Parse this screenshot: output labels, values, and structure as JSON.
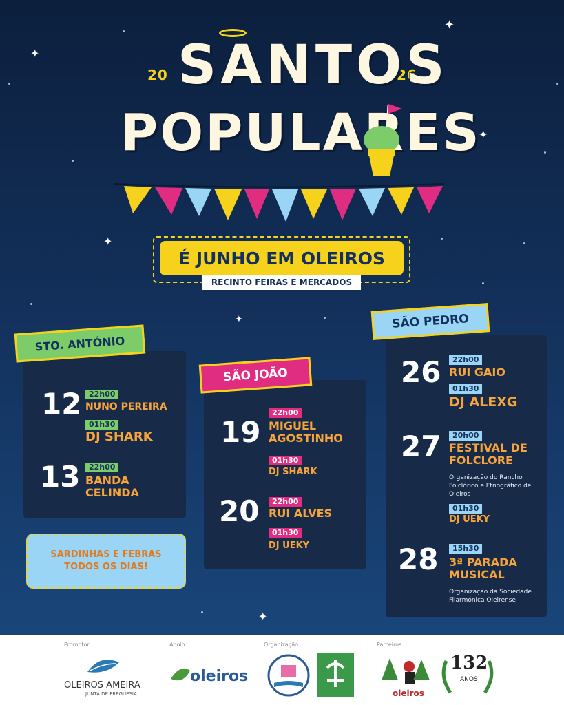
{
  "title": {
    "year_left": "20",
    "year_right": "26",
    "line1": "SANTOS",
    "line2": "POPULARES"
  },
  "subtitle": {
    "month": "É JUNHO EM OLEIROS",
    "venue": "RECINTO FEIRAS E MERCADOS"
  },
  "colors": {
    "yellow": "#f7d21c",
    "pink": "#e02d82",
    "green": "#7dcc6a",
    "blue": "#9bd5f5",
    "orange": "#f7a43c",
    "navy": "#13315c"
  },
  "santo_antonio": {
    "ribbon": "STO. ANTÓNIO",
    "days": [
      {
        "day": "12",
        "events": [
          {
            "time": "22h00",
            "act": "NUNO PEREIRA"
          },
          {
            "time": "01h30",
            "act": "DJ SHARK"
          }
        ]
      },
      {
        "day": "13",
        "events": [
          {
            "time": "22h00",
            "act": "BANDA CELINDA"
          }
        ]
      }
    ]
  },
  "sao_joao": {
    "ribbon": "SÃO JOÃO",
    "days": [
      {
        "day": "19",
        "events": [
          {
            "time": "22h00",
            "act": "MIGUEL AGOSTINHO"
          },
          {
            "time": "01h30",
            "act": "DJ SHARK"
          }
        ]
      },
      {
        "day": "20",
        "events": [
          {
            "time": "22h00",
            "act": "RUI ALVES"
          },
          {
            "time": "01h30",
            "act": "DJ UEKY"
          }
        ]
      }
    ]
  },
  "sao_pedro": {
    "ribbon": "SÃO PEDRO",
    "days": [
      {
        "day": "26",
        "events": [
          {
            "time": "22h00",
            "act": "RUI GAIO"
          },
          {
            "time": "01h30",
            "act": "DJ ALEXG"
          }
        ]
      },
      {
        "day": "27",
        "events": [
          {
            "time": "20h00",
            "act": "FESTIVAL DE FOLCLORE",
            "note": "Organização do Rancho Folclórico e Etnográfico de Oleiros"
          },
          {
            "time": "01h30",
            "act": "DJ UEKY"
          }
        ]
      },
      {
        "day": "28",
        "events": [
          {
            "time": "15h30",
            "act": "3ª PARADA MUSICAL",
            "note": "Organização da Sociedade Filarmónica Oleirense"
          }
        ]
      }
    ]
  },
  "sardinhas": {
    "line1": "SARDINHAS E FEBRAS",
    "line2": "TODOS OS DIAS!"
  },
  "footer": {
    "promotor_label": "Promotor:",
    "promotor_name": "OLEIROS AMEIRA",
    "promotor_sub": "JUNTA DE FREGUESIA",
    "apoio_label": "Apoio:",
    "apoio_name": "oleiros",
    "organizacao_label": "Organização:",
    "parceiros_label": "Parceiros:",
    "parceiro1_name": "oleiros",
    "parceiro2_number": "132",
    "parceiro2_sub": "ANOS"
  }
}
